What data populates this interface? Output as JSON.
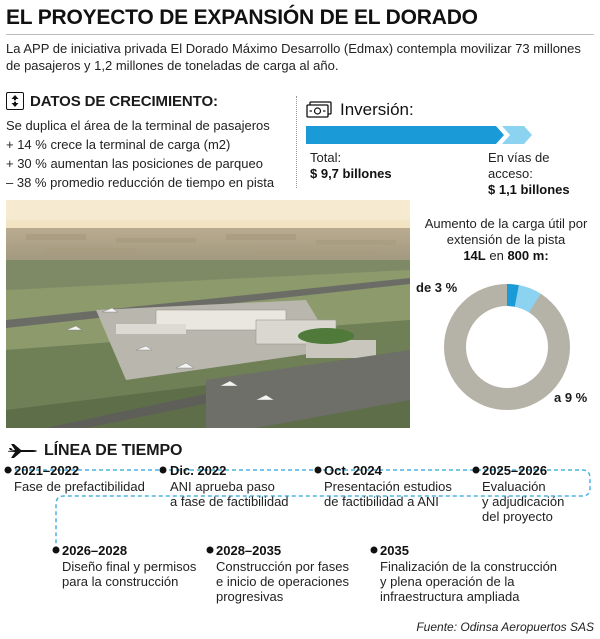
{
  "title": "EL PROYECTO DE EXPANSIÓN DE EL DORADO",
  "intro": "La APP de iniciativa privada El Dorado Máximo Desarrollo (Edmax) contempla  movilizar 73 millones de pasajeros y 1,2 millones de toneladas de carga al año.",
  "growth": {
    "icon": "expand-arrows-icon",
    "title": "DATOS DE CRECIMIENTO:",
    "items": [
      "Se duplica el área de la terminal de pasajeros",
      "+ 14 % crece la terminal de carga (m2)",
      "+ 30 % aumentan las posiciones de parqueo",
      "– 38 % promedio reducción de tiempo en pista"
    ]
  },
  "investment": {
    "icon": "money-stack-icon",
    "title": "Inversión:",
    "total_label": "Total:",
    "total_value": "$ 9,7 billones",
    "access_label": "En vías de acceso:",
    "access_value": "$ 1,1 billones",
    "total_amount": 9.7,
    "access_amount": 1.1
  },
  "cargo": {
    "line1": "Aumento de la carga útil por",
    "line2": "extensión de la pista",
    "highlight_a": "14L",
    "connector": "en",
    "highlight_b": "800 m:",
    "from_label": "de 3 %",
    "to_label": "a 9 %",
    "from_percent": 3,
    "to_percent": 9
  },
  "timeline": {
    "icon": "airplane-icon",
    "title": "LÍNEA DE TIEMPO",
    "events": [
      {
        "year": "2021–2022",
        "lines": [
          "Fase de prefactibilidad"
        ]
      },
      {
        "year": "Dic. 2022",
        "lines": [
          "ANI aprueba paso",
          "a fase de factibilidad"
        ]
      },
      {
        "year": "Oct. 2024",
        "lines": [
          "Presentación estudios",
          "de factibilidad a ANI"
        ]
      },
      {
        "year": "2025–2026",
        "lines": [
          "Evaluación",
          "y adjudicación",
          "del proyecto"
        ]
      },
      {
        "year": "2026–2028",
        "lines": [
          "Diseño final y permisos",
          "para la construcción"
        ]
      },
      {
        "year": "2028–2035",
        "lines": [
          "Construcción por fases",
          "e inicio de operaciones",
          "progresivas"
        ]
      },
      {
        "year": "2035",
        "lines": [
          "Finalización de la construcción",
          "y plena operación de la",
          "infraestructura ampliada"
        ]
      }
    ]
  },
  "source": "Fuente: Odinsa Aeropuertos SAS",
  "colors": {
    "accent": "#1a9ad6",
    "light_accent": "#8cd3f2",
    "donut_gray": "#b5b2a7",
    "timeline_dash": "#4bb3e3"
  }
}
